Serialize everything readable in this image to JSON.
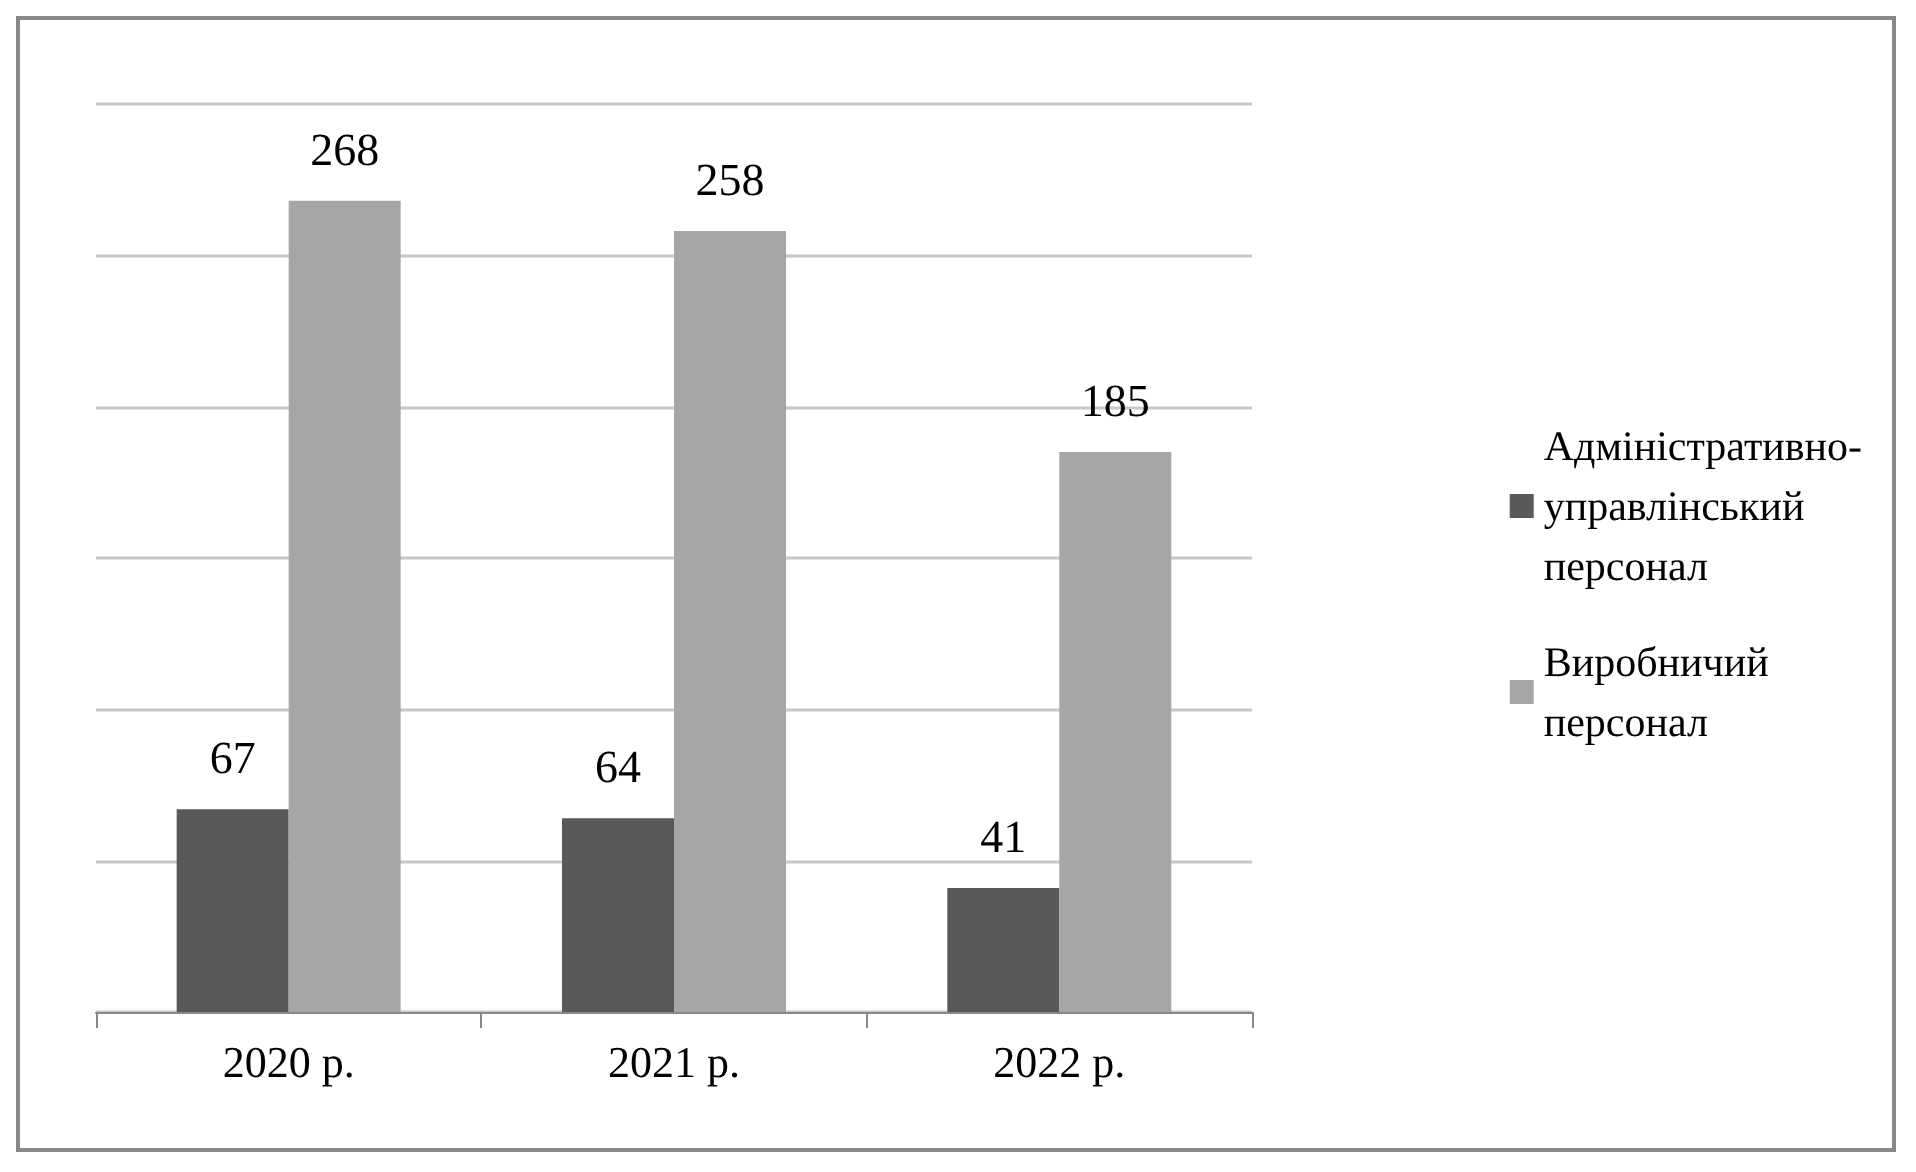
{
  "chart_data": {
    "type": "bar",
    "categories": [
      "2020 р.",
      "2021 р.",
      "2022 р."
    ],
    "series": [
      {
        "name": "Адміністративно-управлінський персонал",
        "color": "#595959",
        "values": [
          67,
          64,
          41
        ]
      },
      {
        "name": "Виробничий персонал",
        "color": "#a6a6a6",
        "values": [
          268,
          258,
          185
        ]
      }
    ],
    "ylim": [
      0,
      300
    ],
    "yticks": [
      {
        "value": 0,
        "label": null
      },
      {
        "value": 50,
        "label": null
      },
      {
        "value": 100,
        "label": null
      },
      {
        "value": 150,
        "label": null
      },
      {
        "value": 200,
        "label": null
      },
      {
        "value": 250,
        "label": null
      },
      {
        "value": 300,
        "label": null
      }
    ],
    "tick_labels": "x",
    "grid": "y",
    "legend": "right",
    "data_labels": true
  }
}
